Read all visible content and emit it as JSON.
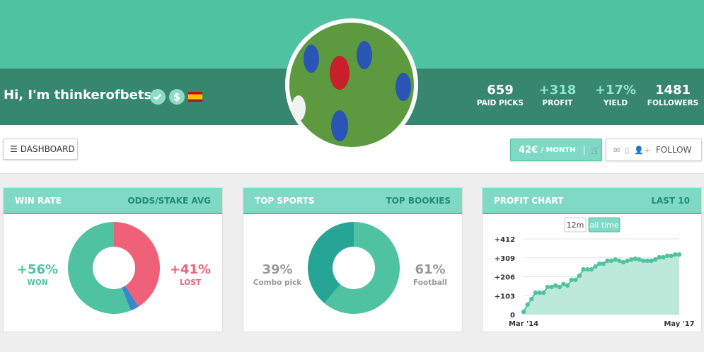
{
  "header": {
    "greeting": "Hi, I'm thinkerofbets!",
    "stats": [
      {
        "value": "659",
        "label": "PAID PICKS"
      },
      {
        "value": "+318",
        "label": "PROFIT"
      },
      {
        "value": "+17%",
        "label": "YIELD"
      },
      {
        "value": "1481",
        "label": "FOLLOWERS"
      }
    ]
  },
  "toolbar": {
    "dashboard": "DASHBOARD",
    "price": "42€",
    "period": "/ MONTH",
    "follow": "FOLLOW"
  },
  "cards": [
    {
      "title": "WIN RATE",
      "link": "ODDS/STAKE AVG",
      "chart": {
        "type": "donut",
        "label_color": "segment",
        "segments": [
          {
            "name": "LOST",
            "value": 41,
            "label": "+41%",
            "color": "#ef6178"
          },
          {
            "value": 3,
            "color": "#3a87c9"
          },
          {
            "name": "WON",
            "value": 56,
            "label": "+56%",
            "color": "#4fc3a1"
          }
        ]
      }
    },
    {
      "title": "TOP SPORTS",
      "link": "TOP BOOKIES",
      "chart": {
        "type": "donut",
        "label_color": "#999999",
        "segments": [
          {
            "name": "Football",
            "value": 61,
            "label": "61%",
            "color": "#4fc3a1"
          },
          {
            "name": "Combo pick",
            "value": 39,
            "label": "39%",
            "color": "#26a596"
          }
        ]
      }
    },
    {
      "title": "PROFIT CHART",
      "link": "LAST 10",
      "chart": {
        "type": "line",
        "buttons": [
          "12m",
          "all time"
        ],
        "x": [
          "Mar '14",
          null,
          null,
          null,
          null,
          null,
          null,
          null,
          null,
          null,
          null,
          null,
          null,
          null,
          null,
          null,
          null,
          null,
          null,
          null,
          null,
          null,
          null,
          null,
          null,
          null,
          null,
          null,
          null,
          null,
          null,
          null,
          null,
          null,
          null,
          null,
          null,
          null,
          null,
          "May '17"
        ],
        "values": [
          15,
          54,
          85,
          119,
          119,
          119,
          150,
          150,
          158,
          150,
          166,
          158,
          189,
          189,
          212,
          246,
          246,
          246,
          262,
          277,
          277,
          293,
          293,
          300,
          293,
          285,
          293,
          300,
          304,
          300,
          293,
          293,
          293,
          300,
          312,
          312,
          320,
          320,
          327,
          327
        ],
        "ylim": [
          0,
          412
        ],
        "yticks": [
          0,
          {
            "value": 103,
            "label": "+103"
          },
          {
            "value": 206,
            "label": "+206"
          },
          {
            "value": 309,
            "label": "+309"
          },
          {
            "value": 412,
            "label": "+412"
          }
        ],
        "color": "#4fc3a1",
        "area_color": "#bde9da",
        "grid": true
      }
    }
  ]
}
